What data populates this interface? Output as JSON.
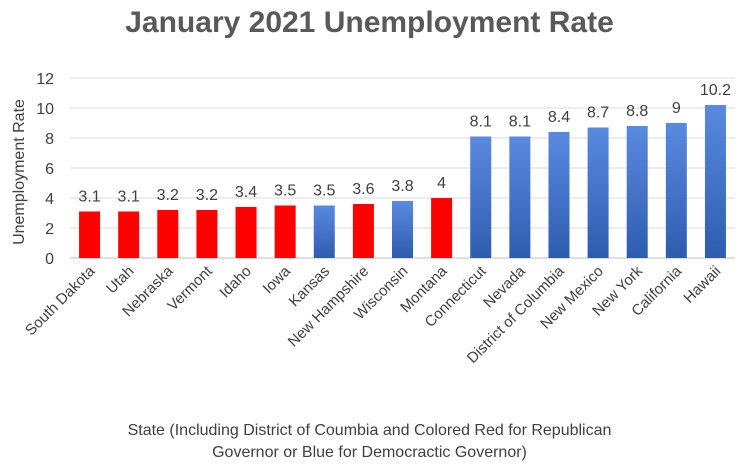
{
  "chart_data": {
    "type": "bar",
    "title": "January 2021 Unemployment Rate",
    "ylabel": "Unemployment Rate",
    "xlabel_lines": [
      "State (Including District of Coumbia and Colored Red for Republican",
      "Governor or Blue for Democractic Governor)"
    ],
    "ylim": [
      0,
      12
    ],
    "yticks": [
      0,
      2,
      4,
      6,
      8,
      10,
      12
    ],
    "grid": true,
    "legend": false,
    "categories": [
      "South Dakota",
      "Utah",
      "Nebraska",
      "Vermont",
      "Idaho",
      "Iowa",
      "Kansas",
      "New Hampshire",
      "Wisconsin",
      "Montana",
      "Connecticut",
      "Nevada",
      "District of Columbia",
      "New Mexico",
      "New York",
      "California",
      "Hawaii"
    ],
    "values": [
      3.1,
      3.1,
      3.2,
      3.2,
      3.4,
      3.5,
      3.5,
      3.6,
      3.8,
      4,
      8.1,
      8.1,
      8.4,
      8.7,
      8.8,
      9,
      10.2
    ],
    "bar_colors": [
      "#ff0000",
      "#ff0000",
      "#ff0000",
      "#ff0000",
      "#ff0000",
      "#ff0000",
      "#4472c4",
      "#ff0000",
      "#4472c4",
      "#ff0000",
      "#4472c4",
      "#4472c4",
      "#4472c4",
      "#4472c4",
      "#4472c4",
      "#4472c4",
      "#4472c4"
    ],
    "colors": {
      "republican": "#ff0000",
      "democratic": "#4472c4"
    }
  }
}
